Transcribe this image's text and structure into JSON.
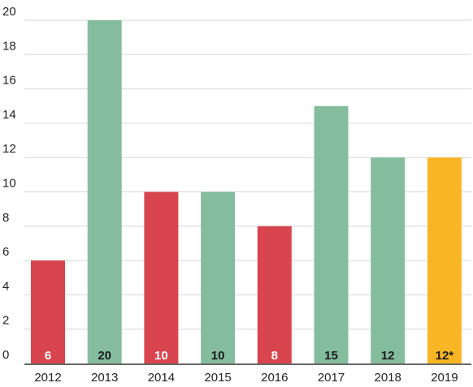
{
  "chart_data": {
    "type": "bar",
    "categories": [
      "2012",
      "2013",
      "2014",
      "2015",
      "2016",
      "2017",
      "2018",
      "2019"
    ],
    "values": [
      6,
      20,
      10,
      10,
      8,
      15,
      12,
      12
    ],
    "data_labels": [
      "6",
      "20",
      "10",
      "10",
      "8",
      "15",
      "12",
      "12*"
    ],
    "bar_colors": [
      "#d9454e",
      "#83bd9d",
      "#d9454e",
      "#83bd9d",
      "#d9454e",
      "#83bd9d",
      "#83bd9d",
      "#f8b624"
    ],
    "label_colors": [
      "#ffffff",
      "#1a1a1a",
      "#ffffff",
      "#1a1a1a",
      "#ffffff",
      "#1a1a1a",
      "#1a1a1a",
      "#1a1a1a"
    ],
    "yticks": [
      0,
      2,
      4,
      6,
      8,
      10,
      12,
      14,
      16,
      18,
      20
    ],
    "ylim": [
      0,
      20
    ],
    "title": "",
    "xlabel": "",
    "ylabel": "",
    "grid": true,
    "legend": "none"
  }
}
